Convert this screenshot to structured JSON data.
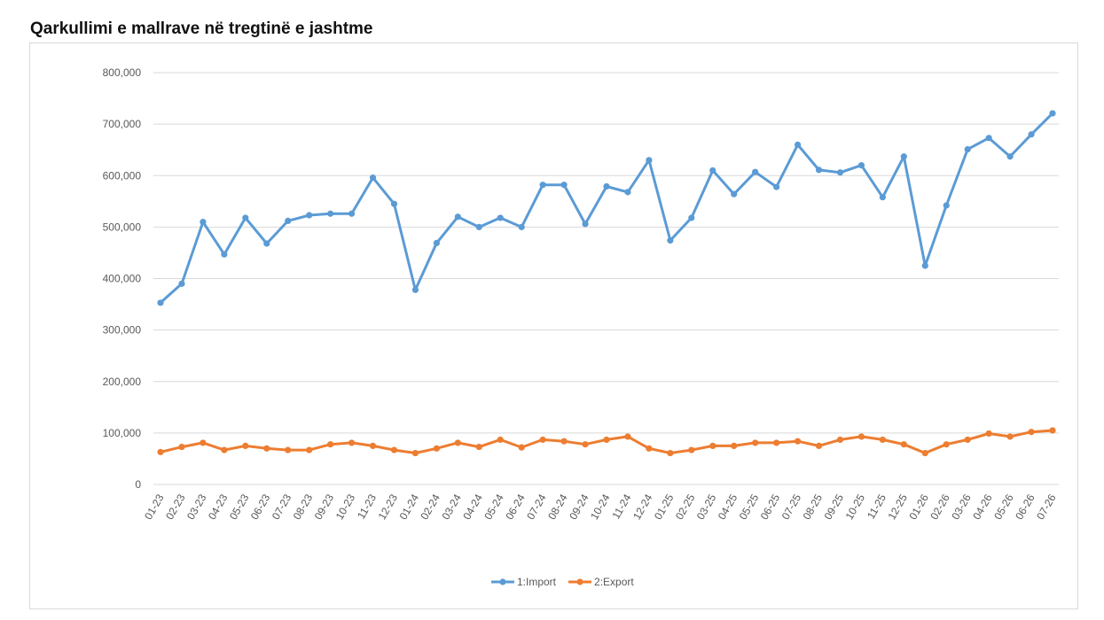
{
  "page": {
    "title": "Qarkullimi e mallrave në tregtinë e jashtme"
  },
  "chart_data": {
    "type": "line",
    "title": "",
    "xlabel": "",
    "ylabel": "",
    "ylim": [
      0,
      800000
    ],
    "yticks": [
      0,
      100000,
      200000,
      300000,
      400000,
      500000,
      600000,
      700000,
      800000
    ],
    "ytick_labels": [
      "0",
      "100,000",
      "200,000",
      "300,000",
      "400,000",
      "500,000",
      "600,000",
      "700,000",
      "800,000"
    ],
    "grid": true,
    "legend_position": "bottom",
    "categories": [
      "01-23",
      "02-23",
      "03-23",
      "04-23",
      "05-23",
      "06-23",
      "07-23",
      "08-23",
      "09-23",
      "10-23",
      "11-23",
      "12-23",
      "01-24",
      "02-24",
      "03-24",
      "04-24",
      "05-24",
      "06-24",
      "07-24",
      "08-24",
      "09-24",
      "10-24",
      "11-24",
      "12-24",
      "01-25",
      "02-25",
      "03-25",
      "04-25",
      "05-25",
      "06-25",
      "07-25",
      "08-25",
      "09-25",
      "10-25",
      "11-25",
      "12-25",
      "01-26",
      "02-26",
      "03-26",
      "04-26",
      "05-26",
      "06-26",
      "07-26"
    ],
    "series": [
      {
        "name": "1:Import",
        "color": "#5b9bd5",
        "values": [
          353000,
          390000,
          510000,
          447000,
          518000,
          468000,
          512000,
          523000,
          526000,
          526000,
          596000,
          545000,
          378000,
          469000,
          520000,
          500000,
          518000,
          500000,
          582000,
          582000,
          506000,
          579000,
          568000,
          630000,
          474000,
          518000,
          610000,
          564000,
          607000,
          578000,
          660000,
          611000,
          606000,
          620000,
          558000,
          637000,
          425000,
          542000,
          651000,
          673000,
          637000,
          680000,
          721000
        ]
      },
      {
        "name": "2:Export",
        "color": "#ed7d31",
        "values": [
          63000,
          73000,
          81000,
          67000,
          75000,
          70000,
          67000,
          67000,
          78000,
          81000,
          75000,
          67000,
          61000,
          70000,
          81000,
          73000,
          87000,
          72000,
          87000,
          84000,
          78000,
          87000,
          93000,
          70000,
          61000,
          67000,
          75000,
          75000,
          81000,
          81000,
          84000,
          75000,
          87000,
          93000,
          87000,
          78000,
          61000,
          78000,
          87000,
          99000,
          93000,
          102000,
          105000
        ]
      }
    ]
  }
}
